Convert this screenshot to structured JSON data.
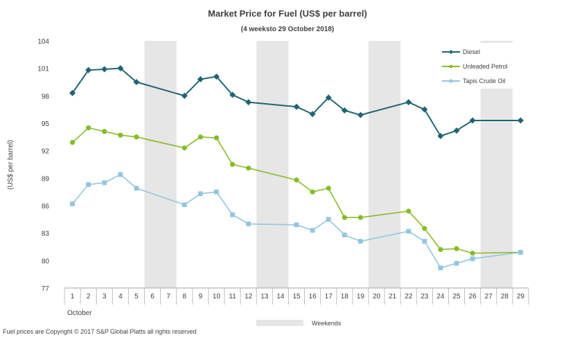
{
  "chart_data": {
    "type": "line",
    "title": "Market Price for Fuel (US$ per barrel)",
    "subtitle": "(4 weeksto 29 October 2018)",
    "xlabel": "October",
    "ylabel": "(US$ per barrel)",
    "ylim": [
      77,
      104
    ],
    "yticks": [
      77,
      80,
      83,
      86,
      89,
      92,
      95,
      98,
      101,
      104
    ],
    "categories": [
      "1",
      "2",
      "3",
      "4",
      "5",
      "6",
      "7",
      "8",
      "9",
      "10",
      "11",
      "12",
      "13",
      "14",
      "15",
      "16",
      "17",
      "18",
      "19",
      "20",
      "21",
      "22",
      "23",
      "24",
      "25",
      "26",
      "27",
      "28",
      "29"
    ],
    "weekend_bands": [
      [
        6,
        7
      ],
      [
        13,
        14
      ],
      [
        20,
        21
      ],
      [
        27,
        28
      ]
    ],
    "weekend_label": "Weekends",
    "grid": false,
    "legend_position": "top-right",
    "series": [
      {
        "name": "Diesel",
        "color": "#1f6473",
        "marker": "diamond",
        "points": [
          [
            1,
            98.3
          ],
          [
            2,
            100.8
          ],
          [
            3,
            100.9
          ],
          [
            4,
            101.0
          ],
          [
            5,
            99.5
          ],
          [
            8,
            98.0
          ],
          [
            9,
            99.8
          ],
          [
            10,
            100.1
          ],
          [
            11,
            98.1
          ],
          [
            12,
            97.3
          ],
          [
            15,
            96.8
          ],
          [
            16,
            96.0
          ],
          [
            17,
            97.8
          ],
          [
            18,
            96.4
          ],
          [
            19,
            95.9
          ],
          [
            22,
            97.3
          ],
          [
            23,
            96.5
          ],
          [
            24,
            93.6
          ],
          [
            25,
            94.2
          ],
          [
            26,
            95.3
          ],
          [
            29,
            95.3
          ]
        ]
      },
      {
        "name": "Unleaded Petrol",
        "color": "#86bc25",
        "marker": "circle",
        "points": [
          [
            1,
            92.9
          ],
          [
            2,
            94.5
          ],
          [
            3,
            94.1
          ],
          [
            4,
            93.7
          ],
          [
            5,
            93.5
          ],
          [
            8,
            92.3
          ],
          [
            9,
            93.5
          ],
          [
            10,
            93.4
          ],
          [
            11,
            90.5
          ],
          [
            12,
            90.1
          ],
          [
            15,
            88.8
          ],
          [
            16,
            87.5
          ],
          [
            17,
            87.9
          ],
          [
            18,
            84.7
          ],
          [
            19,
            84.7
          ],
          [
            22,
            85.4
          ],
          [
            23,
            83.5
          ],
          [
            24,
            81.2
          ],
          [
            25,
            81.3
          ],
          [
            26,
            80.8
          ],
          [
            29,
            80.9
          ]
        ]
      },
      {
        "name": "Tapis Crude Oil",
        "color": "#93c5e0",
        "marker": "square",
        "points": [
          [
            1,
            86.2
          ],
          [
            2,
            88.3
          ],
          [
            3,
            88.5
          ],
          [
            4,
            89.4
          ],
          [
            5,
            87.9
          ],
          [
            8,
            86.1
          ],
          [
            9,
            87.3
          ],
          [
            10,
            87.5
          ],
          [
            11,
            85.0
          ],
          [
            12,
            84.0
          ],
          [
            15,
            83.9
          ],
          [
            16,
            83.3
          ],
          [
            17,
            84.5
          ],
          [
            18,
            82.8
          ],
          [
            19,
            82.1
          ],
          [
            22,
            83.2
          ],
          [
            23,
            82.1
          ],
          [
            24,
            79.2
          ],
          [
            25,
            79.7
          ],
          [
            26,
            80.2
          ],
          [
            29,
            80.9
          ]
        ]
      }
    ]
  },
  "footer": {
    "copyright": "Fuel prices are Copyright © 2017 S&P Global Platts all rights reserved"
  }
}
